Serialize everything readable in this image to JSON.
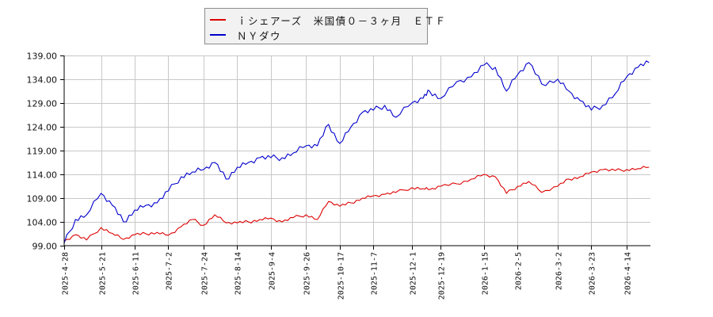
{
  "legend": {
    "items": [
      {
        "label": "ｉシェアーズ　米国債０－３ヶ月　ＥＴＦ",
        "color": "#dd0000"
      },
      {
        "label": "ＮＹダウ",
        "color": "#0000cc"
      }
    ]
  },
  "colors": {
    "grid": "#c8c8c8",
    "axis": "#000000",
    "legend_bg": "#f2f2f2",
    "legend_border": "#8c8c8c"
  },
  "chart_data": {
    "type": "line",
    "title": "",
    "xlabel": "",
    "ylabel": "",
    "ylim": [
      99,
      139
    ],
    "grid": true,
    "legend_position": "top-center",
    "y_ticks": [
      "99.00",
      "104.00",
      "109.00",
      "114.00",
      "119.00",
      "124.00",
      "129.00",
      "134.00",
      "139.00"
    ],
    "x_ticks": [
      "2025-4-28",
      "2025-5-21",
      "2025-6-11",
      "2025-7-2",
      "2025-7-24",
      "2025-8-14",
      "2025-9-4",
      "2025-9-26",
      "2025-10-17",
      "2025-11-7",
      "2025-12-1",
      "2025-12-19",
      "2026-1-15",
      "2026-2-5",
      "2026-3-2",
      "2026-3-23",
      "2026-4-14"
    ],
    "x": [
      "2025-4-28",
      "2025-5-5",
      "2025-5-12",
      "2025-5-21",
      "2025-5-28",
      "2025-6-4",
      "2025-6-11",
      "2025-6-18",
      "2025-6-25",
      "2025-7-2",
      "2025-7-10",
      "2025-7-17",
      "2025-7-24",
      "2025-7-31",
      "2025-8-7",
      "2025-8-14",
      "2025-8-21",
      "2025-8-28",
      "2025-9-4",
      "2025-9-11",
      "2025-9-18",
      "2025-9-26",
      "2025-10-3",
      "2025-10-10",
      "2025-10-17",
      "2025-10-24",
      "2025-10-31",
      "2025-11-7",
      "2025-11-14",
      "2025-11-21",
      "2025-12-1",
      "2025-12-8",
      "2025-12-12",
      "2025-12-19",
      "2025-12-29",
      "2026-1-7",
      "2026-1-15",
      "2026-1-22",
      "2026-1-29",
      "2026-2-5",
      "2026-2-12",
      "2026-2-20",
      "2026-3-2",
      "2026-3-9",
      "2026-3-16",
      "2026-3-23",
      "2026-3-30",
      "2026-4-7",
      "2026-4-14",
      "2026-4-21",
      "2026-4-28"
    ],
    "series": [
      {
        "name": "ｉシェアーズ　米国債０－３ヶ月　ＥＴＦ",
        "color": "#dd0000",
        "values": [
          100.0,
          101.3,
          100.2,
          102.8,
          101.6,
          100.3,
          101.3,
          101.5,
          101.8,
          101.2,
          103.0,
          104.5,
          103.3,
          105.5,
          103.8,
          103.8,
          104.0,
          104.5,
          104.8,
          104.0,
          104.9,
          105.5,
          104.5,
          108.3,
          107.3,
          108.0,
          109.0,
          109.5,
          109.8,
          110.2,
          111.2,
          111.0,
          110.8,
          111.5,
          112.0,
          113.0,
          114.0,
          113.5,
          110.0,
          111.5,
          112.5,
          110.2,
          111.5,
          113.0,
          113.5,
          114.5,
          115.0,
          114.8,
          115.0,
          115.2,
          115.5
        ]
      },
      {
        "name": "ＮＹダウ",
        "color": "#0000cc",
        "values": [
          99.5,
          104.5,
          105.5,
          110.0,
          107.5,
          104.0,
          106.5,
          107.5,
          108.0,
          110.5,
          113.5,
          114.5,
          115.0,
          116.5,
          113.0,
          115.5,
          116.5,
          117.5,
          117.5,
          117.5,
          118.5,
          120.0,
          120.0,
          124.5,
          120.5,
          124.0,
          127.0,
          127.5,
          128.5,
          126.0,
          129.0,
          130.0,
          131.5,
          130.0,
          133.5,
          134.5,
          137.0,
          136.5,
          131.5,
          135.0,
          137.5,
          133.0,
          134.0,
          131.5,
          129.5,
          127.5,
          128.5,
          131.0,
          134.5,
          136.5,
          137.5
        ]
      }
    ]
  }
}
